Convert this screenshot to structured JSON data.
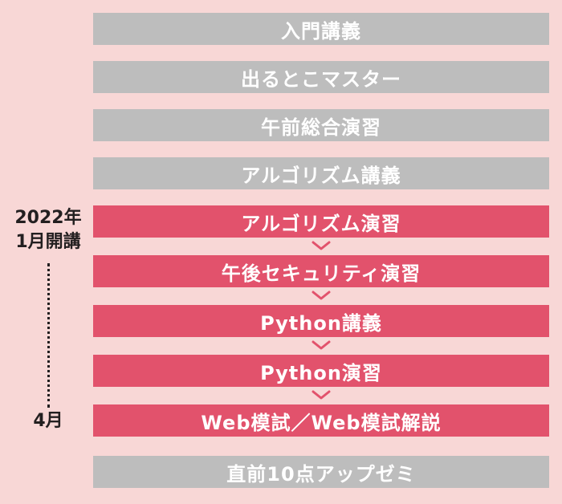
{
  "steps": [
    {
      "label": "入門講義",
      "state": "gray"
    },
    {
      "label": "出るとこマスター",
      "state": "gray"
    },
    {
      "label": "午前総合演習",
      "state": "gray"
    },
    {
      "label": "アルゴリズム講義",
      "state": "gray"
    },
    {
      "label": "アルゴリズム演習",
      "state": "highlight"
    },
    {
      "label": "午後セキュリティ演習",
      "state": "highlight"
    },
    {
      "label": "Python講義",
      "state": "highlight"
    },
    {
      "label": "Python演習",
      "state": "highlight"
    },
    {
      "label": "Web模試／Web模試解説",
      "state": "highlight"
    },
    {
      "label": "直前10点アップゼミ",
      "state": "gray"
    }
  ],
  "timeline": {
    "start_line1": "2022年",
    "start_line2": "1月開講",
    "end": "4月"
  },
  "colors": {
    "background": "#f8d7d6",
    "gray_bar": "#bdbdbd",
    "highlight_bar": "#e2526c",
    "text_dark": "#231f20"
  }
}
